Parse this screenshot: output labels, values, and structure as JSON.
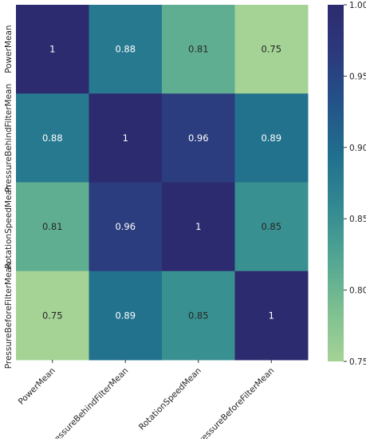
{
  "chart_data": {
    "type": "heatmap",
    "title": "",
    "xlabel": "",
    "ylabel": "",
    "x_categories": [
      "PowerMean",
      "PressureBehindFilterMean",
      "RotationSpeedMean",
      "PressureBeforeFilterMean"
    ],
    "y_categories": [
      "PowerMean",
      "PressureBehindFilterMean",
      "RotationSpeedMean",
      "PressureBeforeFilterMean"
    ],
    "values": [
      [
        1,
        0.88,
        0.81,
        0.75
      ],
      [
        0.88,
        1,
        0.96,
        0.89
      ],
      [
        0.81,
        0.96,
        1,
        0.85
      ],
      [
        0.75,
        0.89,
        0.85,
        1
      ]
    ],
    "annotations": [
      [
        "1",
        "0.88",
        "0.81",
        "0.75"
      ],
      [
        "0.88",
        "1",
        "0.96",
        "0.89"
      ],
      [
        "0.81",
        "0.96",
        "1",
        "0.85"
      ],
      [
        "0.75",
        "0.89",
        "0.85",
        "1"
      ]
    ],
    "colorscale": {
      "name": "crest",
      "vmin": 0.75,
      "vmax": 1.0,
      "stops": [
        "#a5d396",
        "#7dbf91",
        "#52a692",
        "#338a91",
        "#21708e",
        "#225589",
        "#2c3a7c",
        "#2d2b6f"
      ]
    },
    "colorbar": {
      "ticks": [
        0.75,
        0.8,
        0.85,
        0.9,
        0.95,
        1.0
      ],
      "tick_labels": [
        "0.75",
        "0.80",
        "0.85",
        "0.90",
        "0.95",
        "1.00"
      ]
    },
    "grid": false,
    "legend": "colorbar-right"
  }
}
